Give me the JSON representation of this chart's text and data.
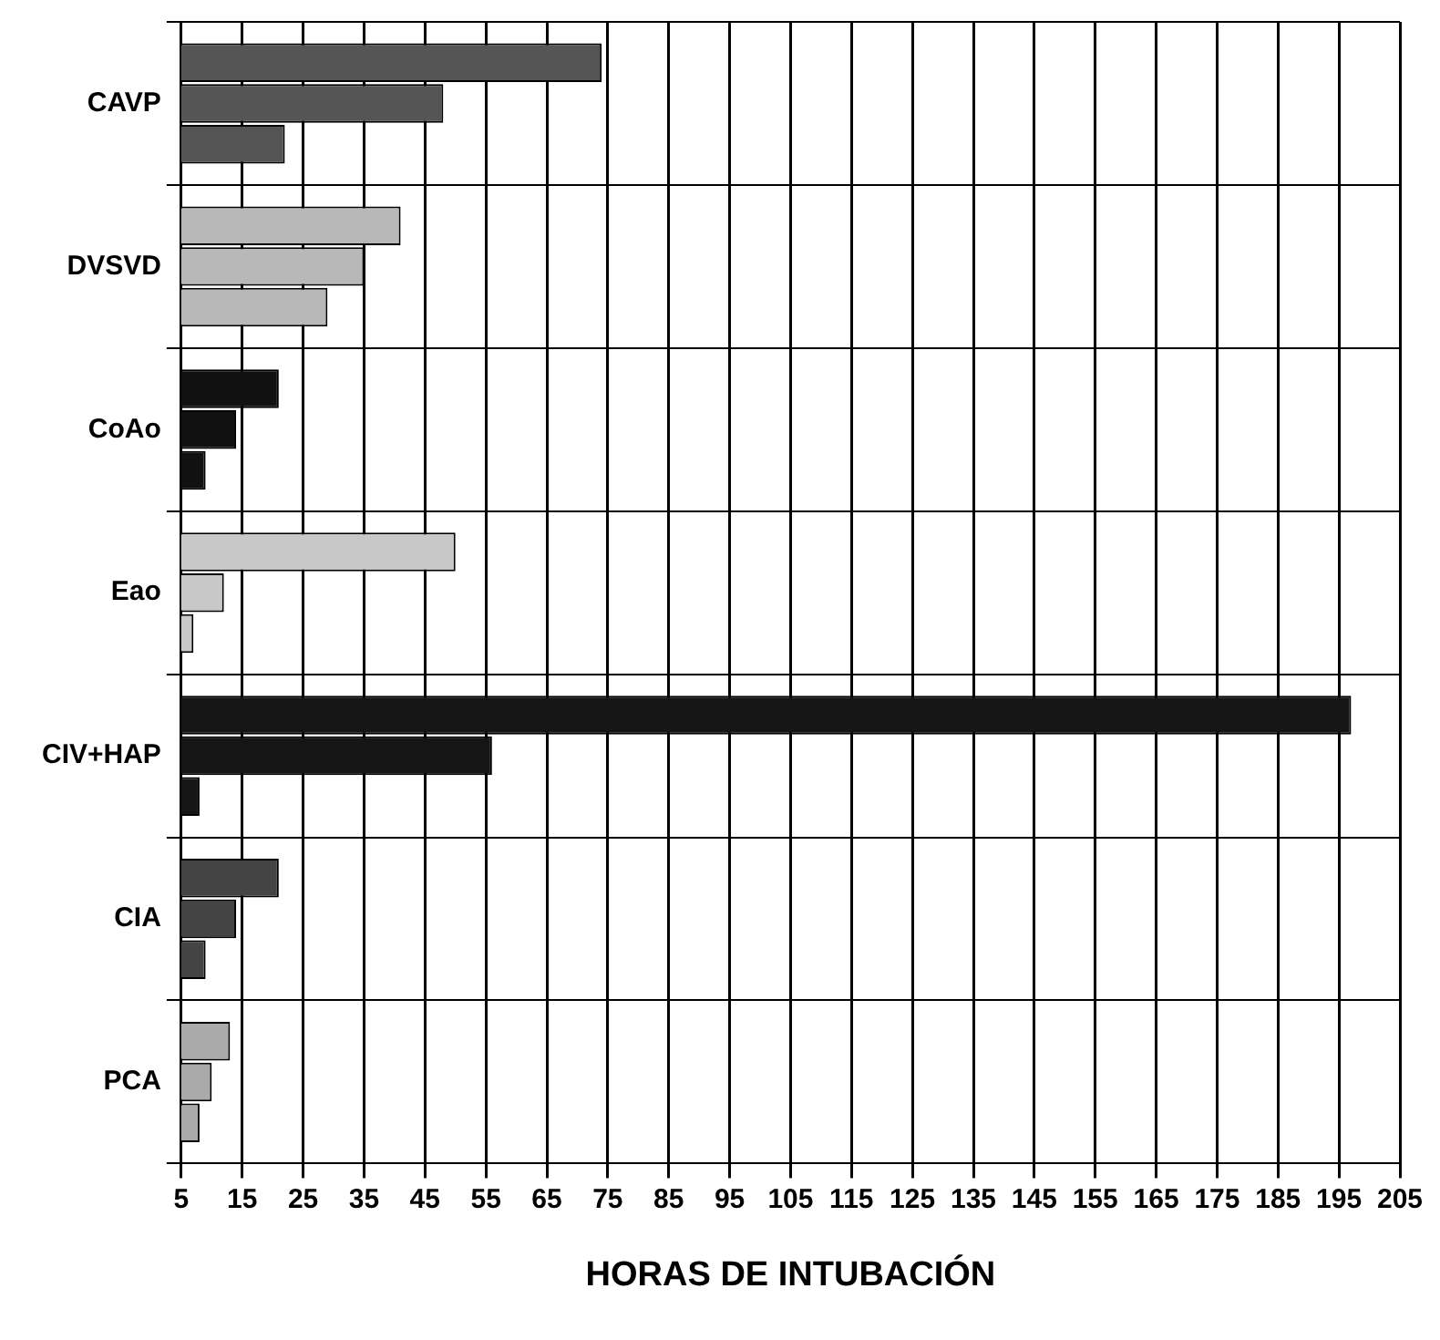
{
  "chart_data": {
    "type": "bar",
    "orientation": "horizontal",
    "xlabel": "HORAS DE INTUBACIÓN",
    "categories": [
      "CAVP",
      "DVSVD",
      "CoAo",
      "Eao",
      "CIV+HAP",
      "CIA",
      "PCA"
    ],
    "series": [
      {
        "colors": [
          "#555555",
          "#b8b8b8",
          "#111111",
          "#c8c8c8",
          "#151515",
          "#444444",
          "#aaaaaa"
        ],
        "values": [
          74,
          41,
          21,
          50,
          197,
          21,
          13
        ]
      },
      {
        "colors": [
          "#555555",
          "#b8b8b8",
          "#111111",
          "#c8c8c8",
          "#151515",
          "#444444",
          "#aaaaaa"
        ],
        "values": [
          48,
          35,
          14,
          12,
          56,
          14,
          10
        ]
      },
      {
        "colors": [
          "#555555",
          "#b8b8b8",
          "#111111",
          "#c8c8c8",
          "#151515",
          "#444444",
          "#aaaaaa"
        ],
        "values": [
          22,
          29,
          9,
          7,
          8,
          9,
          8
        ]
      }
    ],
    "xlim": [
      5,
      205
    ],
    "xticks": [
      5,
      15,
      25,
      35,
      45,
      55,
      65,
      75,
      85,
      95,
      105,
      115,
      125,
      135,
      145,
      155,
      165,
      175,
      185,
      195,
      205
    ],
    "grid": true,
    "legend": false
  }
}
